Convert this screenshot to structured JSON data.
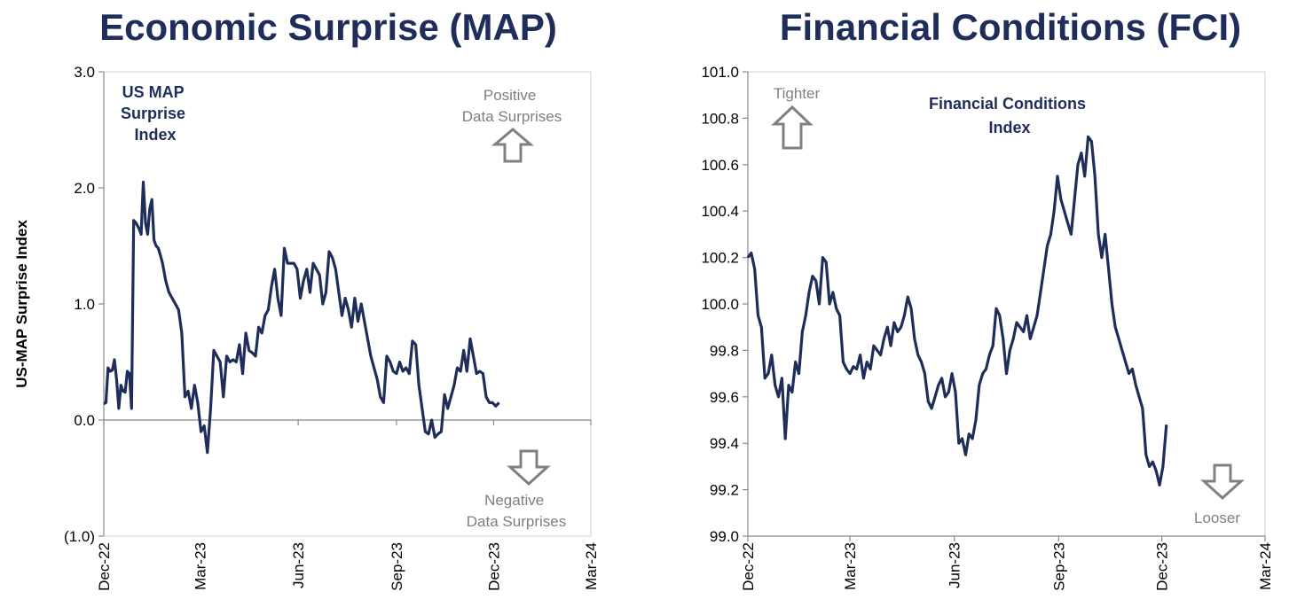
{
  "chart_data": [
    {
      "type": "line",
      "title": "Economic Surprise (MAP)",
      "ylabel": "US-MAP Surprise Index",
      "xlabel": "",
      "inner_title": [
        "US MAP",
        "Surprise",
        "Index"
      ],
      "annotation_top": [
        "Positive",
        "Data Surprises"
      ],
      "annotation_bottom": [
        "Negative",
        "Data Surprises"
      ],
      "ylim": [
        -1.0,
        3.0
      ],
      "yticks": [
        -1.0,
        0.0,
        1.0,
        2.0,
        3.0
      ],
      "ytick_labels": [
        "(1.0)",
        "0.0",
        "1.0",
        "2.0",
        "3.0"
      ],
      "xlim": [
        "2022-12-01",
        "2024-03-01"
      ],
      "xticks": [
        "2022-12-01",
        "2023-03-01",
        "2023-06-01",
        "2023-09-01",
        "2023-12-01",
        "2024-03-01"
      ],
      "xtick_labels": [
        "Dec-22",
        "Mar-23",
        "Jun-23",
        "Sep-23",
        "Dec-23",
        "Mar-24"
      ],
      "grid": false,
      "legend": "none",
      "line_color": "#1f2d5a",
      "series": [
        {
          "x": [
            "2022-12-01",
            "2022-12-03",
            "2022-12-05",
            "2022-12-07",
            "2022-12-09",
            "2022-12-11",
            "2022-12-13",
            "2022-12-15",
            "2022-12-17",
            "2022-12-19",
            "2022-12-21",
            "2022-12-23",
            "2022-12-25",
            "2022-12-27",
            "2022-12-29",
            "2022-12-31",
            "2023-01-03",
            "2023-01-05",
            "2023-01-07",
            "2023-01-09",
            "2023-01-11",
            "2023-01-13",
            "2023-01-15",
            "2023-01-17",
            "2023-01-19",
            "2023-01-21",
            "2023-01-23",
            "2023-01-25",
            "2023-01-28",
            "2023-01-31",
            "2023-02-03",
            "2023-02-06",
            "2023-02-09",
            "2023-02-12",
            "2023-02-15",
            "2023-02-18",
            "2023-02-21",
            "2023-02-24",
            "2023-02-27",
            "2023-03-02",
            "2023-03-05",
            "2023-03-08",
            "2023-03-11",
            "2023-03-14",
            "2023-03-17",
            "2023-03-20",
            "2023-03-23",
            "2023-03-26",
            "2023-03-29",
            "2023-04-01",
            "2023-04-04",
            "2023-04-07",
            "2023-04-10",
            "2023-04-13",
            "2023-04-16",
            "2023-04-19",
            "2023-04-22",
            "2023-04-25",
            "2023-04-28",
            "2023-05-01",
            "2023-05-04",
            "2023-05-07",
            "2023-05-10",
            "2023-05-13",
            "2023-05-16",
            "2023-05-19",
            "2023-05-22",
            "2023-05-25",
            "2023-05-28",
            "2023-05-31",
            "2023-06-03",
            "2023-06-06",
            "2023-06-09",
            "2023-06-12",
            "2023-06-15",
            "2023-06-18",
            "2023-06-21",
            "2023-06-24",
            "2023-06-27",
            "2023-06-30",
            "2023-07-03",
            "2023-07-06",
            "2023-07-09",
            "2023-07-12",
            "2023-07-15",
            "2023-07-18",
            "2023-07-21",
            "2023-07-24",
            "2023-07-27",
            "2023-07-30",
            "2023-08-02",
            "2023-08-05",
            "2023-08-08",
            "2023-08-11",
            "2023-08-14",
            "2023-08-17",
            "2023-08-20",
            "2023-08-23",
            "2023-08-26",
            "2023-08-29",
            "2023-09-01",
            "2023-09-04",
            "2023-09-07",
            "2023-09-10",
            "2023-09-13",
            "2023-09-16",
            "2023-09-19",
            "2023-09-22",
            "2023-09-25",
            "2023-09-28",
            "2023-10-01",
            "2023-10-04",
            "2023-10-07",
            "2023-10-10",
            "2023-10-13",
            "2023-10-16",
            "2023-10-19",
            "2023-10-22",
            "2023-10-25",
            "2023-10-28",
            "2023-10-31",
            "2023-11-03",
            "2023-11-06",
            "2023-11-09",
            "2023-11-12",
            "2023-11-15",
            "2023-11-18",
            "2023-11-21",
            "2023-11-24",
            "2023-11-27",
            "2023-11-30",
            "2023-12-03",
            "2023-12-06"
          ],
          "y": [
            0.14,
            0.15,
            0.45,
            0.42,
            0.43,
            0.52,
            0.35,
            0.1,
            0.3,
            0.25,
            0.24,
            0.42,
            0.4,
            0.1,
            1.72,
            1.7,
            1.65,
            1.6,
            2.05,
            1.7,
            1.6,
            1.82,
            1.9,
            1.55,
            1.5,
            1.48,
            1.42,
            1.35,
            1.2,
            1.1,
            1.05,
            1.0,
            0.95,
            0.75,
            0.2,
            0.25,
            0.1,
            0.3,
            0.15,
            -0.1,
            -0.05,
            -0.28,
            0.1,
            0.6,
            0.55,
            0.5,
            0.2,
            0.55,
            0.5,
            0.52,
            0.5,
            0.65,
            0.4,
            0.75,
            0.6,
            0.58,
            0.55,
            0.8,
            0.75,
            0.9,
            0.95,
            1.15,
            1.3,
            1.05,
            0.9,
            1.48,
            1.35,
            1.35,
            1.35,
            1.3,
            1.05,
            1.2,
            1.3,
            1.1,
            1.35,
            1.3,
            1.25,
            1.0,
            1.1,
            1.45,
            1.4,
            1.3,
            1.1,
            0.9,
            1.05,
            0.95,
            0.8,
            1.05,
            0.85,
            1.0,
            0.85,
            0.7,
            0.55,
            0.45,
            0.35,
            0.2,
            0.15,
            0.55,
            0.5,
            0.42,
            0.4,
            0.5,
            0.42,
            0.45,
            0.4,
            0.68,
            0.65,
            0.3,
            0.1,
            -0.1,
            -0.12,
            0.0,
            -0.15,
            -0.12,
            -0.1,
            0.22,
            0.1,
            0.2,
            0.3,
            0.45,
            0.42,
            0.6,
            0.42,
            0.7,
            0.55,
            0.4,
            0.42,
            0.4,
            0.2,
            0.15,
            0.15,
            0.12,
            0.15
          ]
        }
      ]
    },
    {
      "type": "line",
      "title": "Financial Conditions (FCI)",
      "ylabel": "",
      "xlabel": "",
      "inner_title": [
        "Financial Conditions",
        "Index"
      ],
      "annotation_top": [
        "Tighter"
      ],
      "annotation_bottom": [
        "Looser"
      ],
      "ylim": [
        99.0,
        101.0
      ],
      "yticks": [
        99.0,
        99.2,
        99.4,
        99.6,
        99.8,
        100.0,
        100.2,
        100.4,
        100.6,
        100.8,
        101.0
      ],
      "ytick_labels": [
        "99.0",
        "99.2",
        "99.4",
        "99.6",
        "99.8",
        "100.0",
        "100.2",
        "100.4",
        "100.6",
        "100.8",
        "101.0"
      ],
      "xlim": [
        "2022-12-01",
        "2024-03-01"
      ],
      "xticks": [
        "2022-12-01",
        "2023-03-01",
        "2023-06-01",
        "2023-09-01",
        "2023-12-01",
        "2024-03-01"
      ],
      "xtick_labels": [
        "Dec-22",
        "Mar-23",
        "Jun-23",
        "Sep-23",
        "Dec-23",
        "Mar-24"
      ],
      "grid": false,
      "legend": "none",
      "line_color": "#1f2d5a",
      "series": [
        {
          "x": [
            "2022-12-01",
            "2022-12-04",
            "2022-12-07",
            "2022-12-10",
            "2022-12-13",
            "2022-12-16",
            "2022-12-19",
            "2022-12-22",
            "2022-12-25",
            "2022-12-28",
            "2022-12-31",
            "2023-01-03",
            "2023-01-06",
            "2023-01-09",
            "2023-01-12",
            "2023-01-15",
            "2023-01-18",
            "2023-01-21",
            "2023-01-24",
            "2023-01-27",
            "2023-01-30",
            "2023-02-02",
            "2023-02-05",
            "2023-02-08",
            "2023-02-11",
            "2023-02-14",
            "2023-02-17",
            "2023-02-20",
            "2023-02-23",
            "2023-02-26",
            "2023-03-01",
            "2023-03-04",
            "2023-03-07",
            "2023-03-10",
            "2023-03-13",
            "2023-03-16",
            "2023-03-19",
            "2023-03-22",
            "2023-03-25",
            "2023-03-28",
            "2023-03-31",
            "2023-04-03",
            "2023-04-06",
            "2023-04-09",
            "2023-04-12",
            "2023-04-15",
            "2023-04-18",
            "2023-04-21",
            "2023-04-24",
            "2023-04-27",
            "2023-04-30",
            "2023-05-03",
            "2023-05-06",
            "2023-05-09",
            "2023-05-12",
            "2023-05-15",
            "2023-05-18",
            "2023-05-21",
            "2023-05-24",
            "2023-05-27",
            "2023-05-30",
            "2023-06-02",
            "2023-06-05",
            "2023-06-08",
            "2023-06-11",
            "2023-06-14",
            "2023-06-17",
            "2023-06-20",
            "2023-06-23",
            "2023-06-26",
            "2023-06-29",
            "2023-07-02",
            "2023-07-05",
            "2023-07-08",
            "2023-07-11",
            "2023-07-14",
            "2023-07-17",
            "2023-07-20",
            "2023-07-23",
            "2023-07-26",
            "2023-07-29",
            "2023-08-01",
            "2023-08-04",
            "2023-08-07",
            "2023-08-10",
            "2023-08-13",
            "2023-08-16",
            "2023-08-19",
            "2023-08-22",
            "2023-08-25",
            "2023-08-28",
            "2023-08-31",
            "2023-09-03",
            "2023-09-06",
            "2023-09-09",
            "2023-09-12",
            "2023-09-15",
            "2023-09-18",
            "2023-09-21",
            "2023-09-24",
            "2023-09-27",
            "2023-09-30",
            "2023-10-03",
            "2023-10-06",
            "2023-10-09",
            "2023-10-12",
            "2023-10-15",
            "2023-10-18",
            "2023-10-21",
            "2023-10-24",
            "2023-10-27",
            "2023-10-30",
            "2023-11-02",
            "2023-11-05",
            "2023-11-08",
            "2023-11-11",
            "2023-11-14",
            "2023-11-17",
            "2023-11-20",
            "2023-11-23",
            "2023-11-26",
            "2023-11-29",
            "2023-12-02",
            "2023-12-05"
          ],
          "y": [
            100.2,
            100.22,
            100.15,
            99.95,
            99.9,
            99.68,
            99.7,
            99.78,
            99.65,
            99.6,
            99.68,
            99.42,
            99.65,
            99.62,
            99.75,
            99.7,
            99.88,
            99.95,
            100.05,
            100.12,
            100.1,
            100.0,
            100.2,
            100.18,
            100.0,
            100.05,
            99.98,
            99.95,
            99.75,
            99.72,
            99.7,
            99.73,
            99.72,
            99.78,
            99.68,
            99.75,
            99.72,
            99.82,
            99.8,
            99.78,
            99.85,
            99.9,
            99.82,
            99.92,
            99.88,
            99.9,
            99.95,
            100.03,
            99.98,
            99.85,
            99.78,
            99.75,
            99.7,
            99.58,
            99.55,
            99.6,
            99.65,
            99.68,
            99.6,
            99.62,
            99.7,
            99.62,
            99.4,
            99.42,
            99.35,
            99.44,
            99.42,
            99.5,
            99.65,
            99.7,
            99.72,
            99.78,
            99.82,
            99.98,
            99.95,
            99.85,
            99.7,
            99.8,
            99.85,
            99.92,
            99.9,
            99.88,
            99.95,
            99.85,
            99.9,
            99.95,
            100.05,
            100.15,
            100.25,
            100.3,
            100.4,
            100.55,
            100.45,
            100.4,
            100.35,
            100.3,
            100.45,
            100.6,
            100.65,
            100.55,
            100.72,
            100.7,
            100.55,
            100.3,
            100.2,
            100.3,
            100.15,
            100.0,
            99.9,
            99.85,
            99.8,
            99.75,
            99.7,
            99.72,
            99.65,
            99.6,
            99.55,
            99.35,
            99.3,
            99.32,
            99.28,
            99.22,
            99.3,
            99.48
          ]
        }
      ]
    }
  ]
}
